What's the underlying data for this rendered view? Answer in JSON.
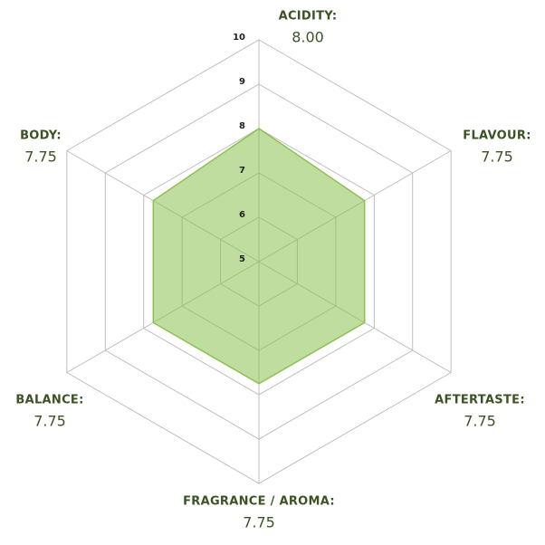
{
  "chart_data": {
    "type": "radar",
    "categories": [
      "ACIDITY:",
      "FLAVOUR:",
      "AFTERTASTE:",
      "FRAGRANCE / AROMA:",
      "BALANCE:",
      "BODY:"
    ],
    "series": [
      {
        "color": "#8cc152",
        "values": [
          8,
          7.75,
          7.75,
          7.75,
          7.75,
          7.75
        ],
        "value_labels": [
          "8.00",
          "7.75",
          "7.75",
          "7.75",
          "7.75",
          "7.75"
        ]
      }
    ],
    "rlim": [
      5,
      10
    ],
    "rticks": [
      5,
      6,
      7,
      8,
      9,
      10
    ],
    "grid": true
  }
}
